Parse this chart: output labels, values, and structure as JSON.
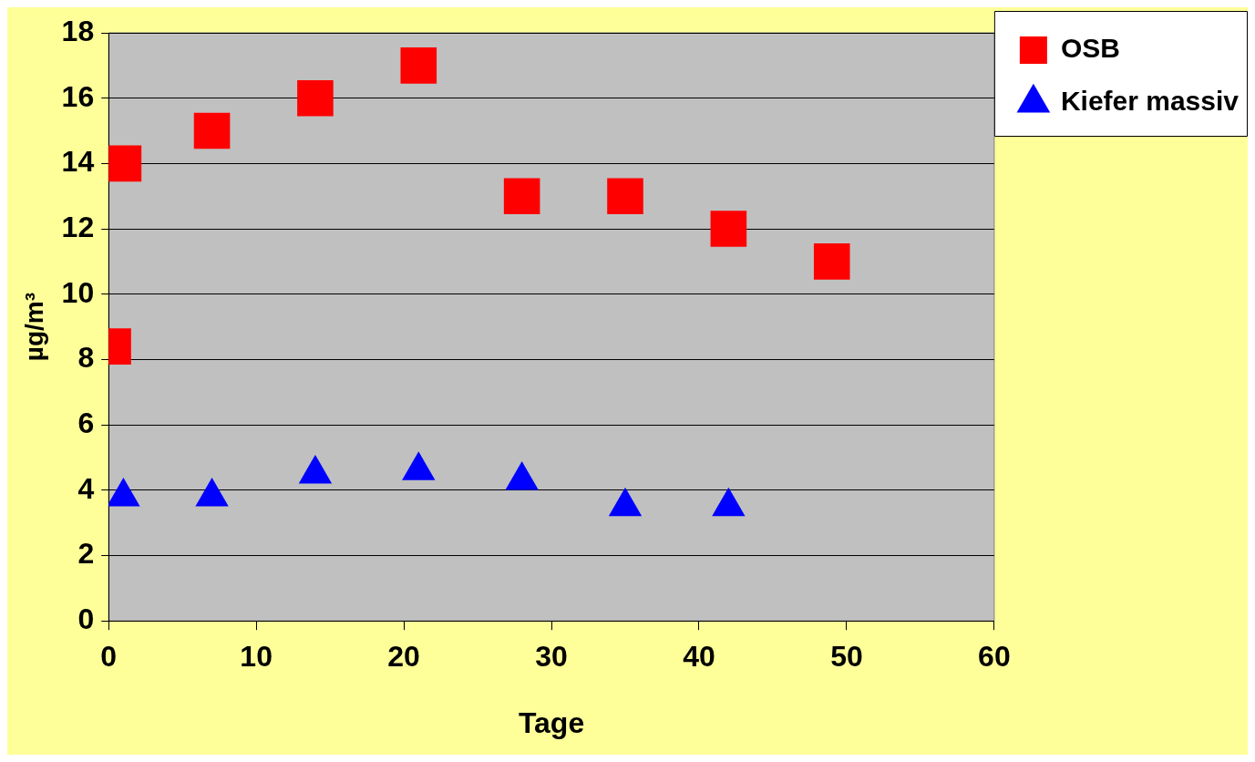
{
  "chart_data": {
    "type": "scatter",
    "xlabel": "Tage",
    "ylabel": "µg/m³",
    "xlim": [
      0,
      60
    ],
    "xticks": [
      0,
      10,
      20,
      30,
      40,
      50,
      60
    ],
    "ylim": [
      0,
      18
    ],
    "yticks": [
      0,
      2,
      4,
      6,
      8,
      10,
      12,
      14,
      16,
      18
    ],
    "grid": "y",
    "legend": "top right",
    "series": [
      {
        "name": "OSB",
        "color": "#ff0000",
        "marker": "square",
        "x": [
          0.3,
          1,
          7,
          14,
          21,
          28,
          35,
          42,
          49
        ],
        "values": [
          8.4,
          14,
          15,
          16,
          17,
          13,
          13,
          12,
          11
        ]
      },
      {
        "name": "Kiefer massiv",
        "color": "#0000ff",
        "marker": "triangle",
        "x": [
          1,
          7,
          14,
          21,
          28,
          35,
          42
        ],
        "values": [
          3.8,
          3.8,
          4.5,
          4.6,
          4.3,
          3.5,
          3.5
        ]
      }
    ]
  }
}
